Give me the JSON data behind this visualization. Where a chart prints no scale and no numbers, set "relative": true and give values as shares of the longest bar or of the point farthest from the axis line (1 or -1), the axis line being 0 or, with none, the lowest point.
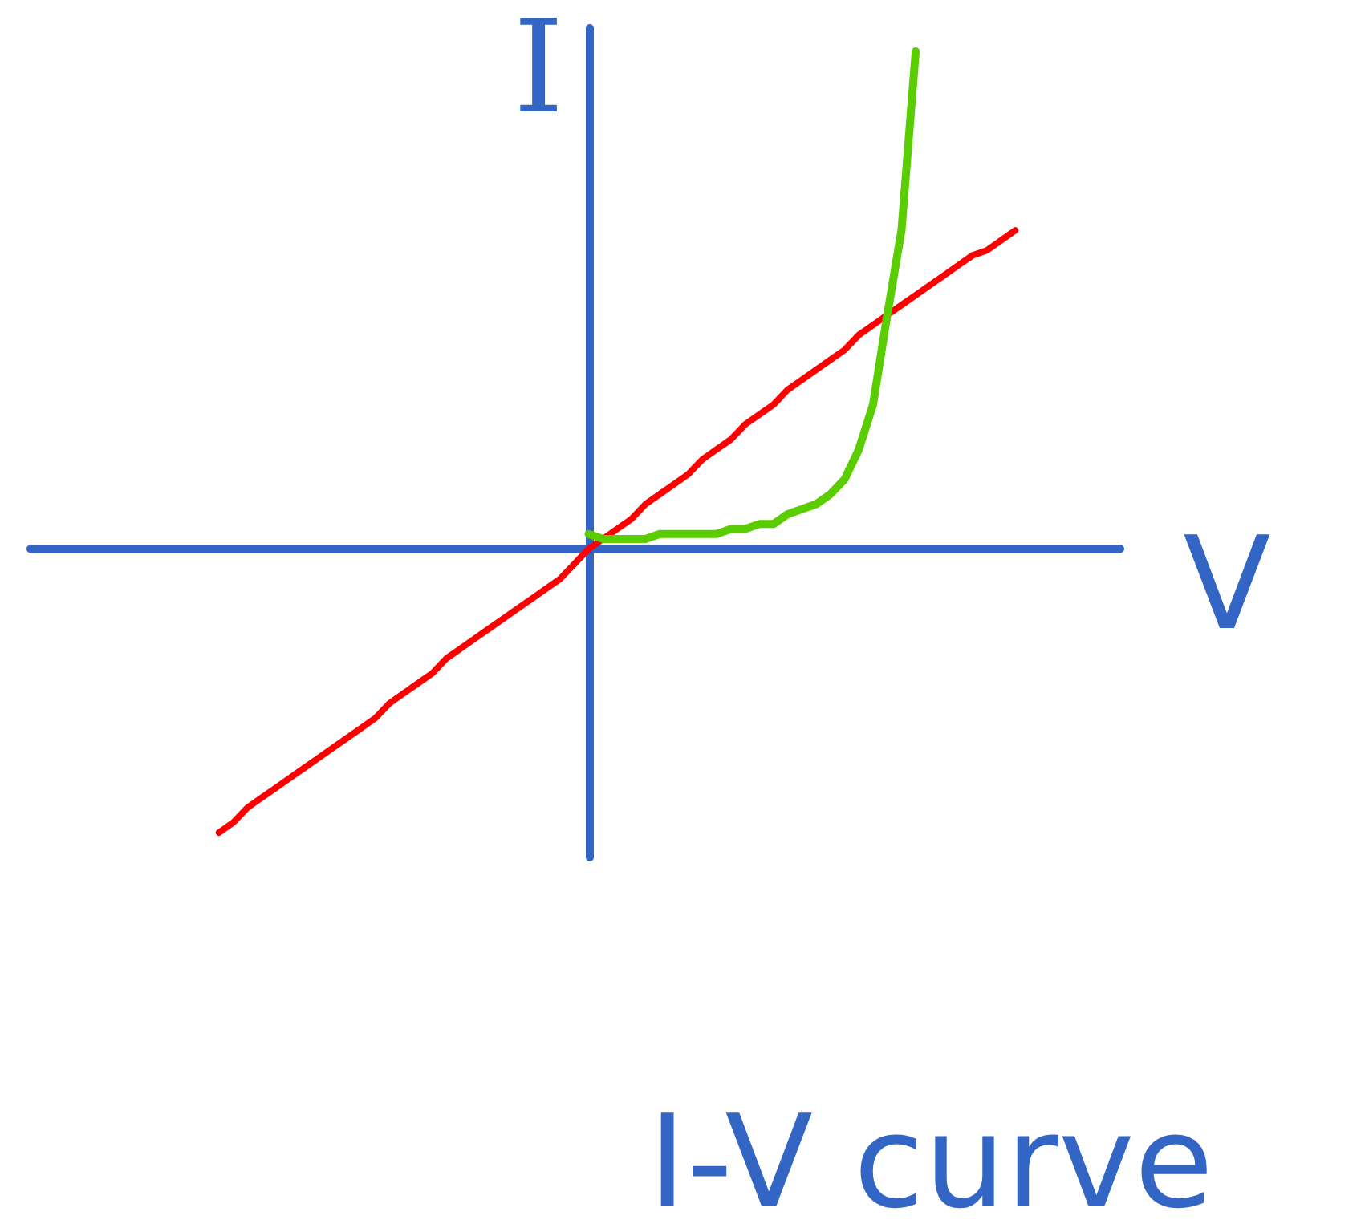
{
  "chart_data": {
    "type": "line",
    "title": "I-V curve",
    "xlabel": "V",
    "ylabel": "I",
    "relative": true,
    "categories": [
      null,
      null,
      null,
      null,
      null,
      null,
      null,
      null,
      null,
      null,
      null,
      null,
      null,
      null,
      null,
      null,
      null,
      null,
      null,
      null,
      null,
      null,
      null,
      null,
      null,
      null,
      null,
      null,
      null,
      null,
      null,
      null,
      null,
      null,
      null,
      null,
      null,
      null,
      null,
      null,
      null,
      null,
      null,
      null,
      null,
      null,
      null,
      null,
      null,
      null,
      null,
      null,
      null,
      null,
      null,
      null,
      null
    ],
    "ref_lines": [
      {
        "axis": "y",
        "value": 0,
        "color": "#3366c4"
      }
    ],
    "series": [
      {
        "color": "#ff0000",
        "values": [
          -0.57,
          -0.55,
          -0.52,
          -0.5,
          -0.48,
          -0.46,
          -0.44,
          -0.42,
          -0.4,
          -0.38,
          -0.36,
          -0.34,
          -0.31,
          -0.29,
          -0.27,
          -0.25,
          -0.22,
          -0.2,
          -0.18,
          -0.16,
          -0.14,
          -0.12,
          -0.1,
          -0.08,
          -0.06,
          -0.03,
          0,
          0.02,
          0.04,
          0.06,
          0.09,
          0.11,
          0.13,
          0.15,
          0.18,
          0.2,
          0.22,
          0.25,
          0.27,
          0.29,
          0.32,
          0.34,
          0.36,
          0.38,
          0.4,
          0.43,
          0.45,
          0.47,
          0.49,
          0.51,
          0.53,
          0.55,
          0.57,
          0.59,
          0.6,
          0.62,
          0.64
        ]
      },
      {
        "color": "#5acd00",
        "values": [
          null,
          null,
          null,
          null,
          null,
          null,
          null,
          null,
          null,
          null,
          null,
          null,
          null,
          null,
          null,
          null,
          null,
          null,
          null,
          null,
          null,
          null,
          null,
          null,
          null,
          null,
          0.03,
          0.02,
          0.02,
          0.02,
          0.02,
          0.03,
          0.03,
          0.03,
          0.03,
          0.03,
          0.04,
          0.04,
          0.05,
          0.05,
          0.07,
          0.08,
          0.09,
          0.11,
          0.14,
          0.2,
          0.29,
          0.47,
          0.64,
          1,
          null,
          null,
          null,
          null,
          null,
          null,
          null
        ]
      }
    ]
  }
}
